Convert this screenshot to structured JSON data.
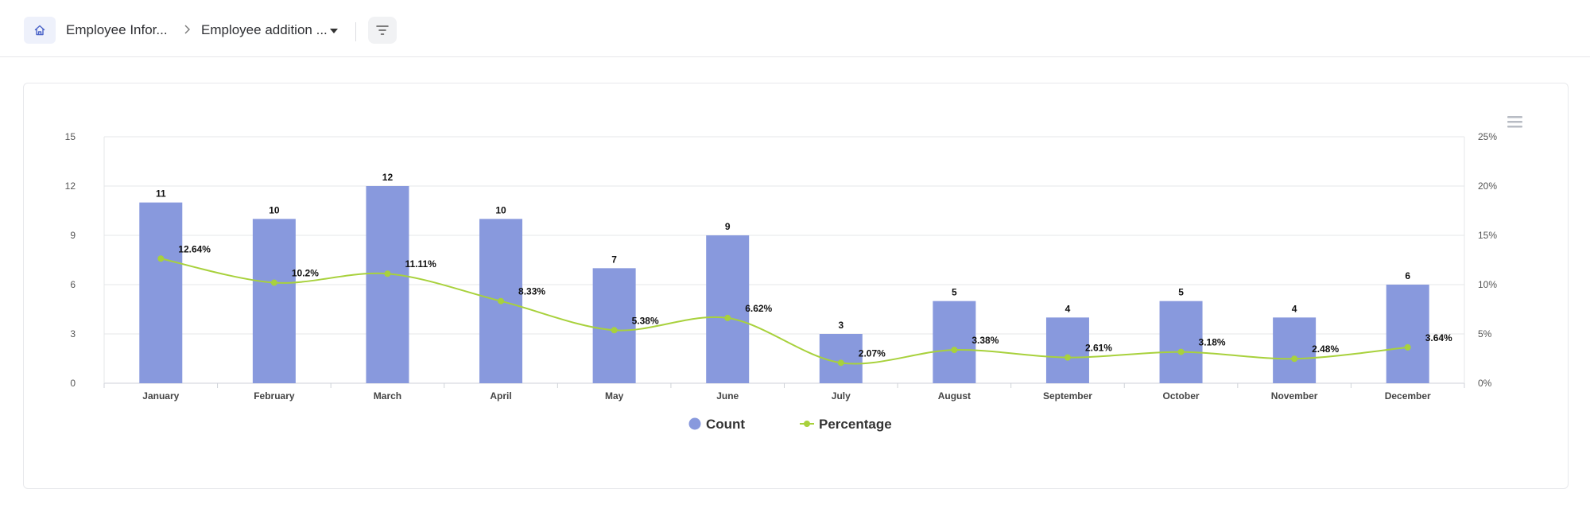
{
  "breadcrumb": {
    "home_icon": "home-icon",
    "item1": "Employee Infor...",
    "separator_icon": "chevron-right-icon",
    "item2": "Employee addition ...",
    "dropdown_icon": "caret-down-icon",
    "filter_icon": "filter-icon"
  },
  "chart_menu_icon": "hamburger-menu-icon",
  "colors": {
    "bar": "#8899dd",
    "line": "#a8d13c",
    "accent": "#4a63c8"
  },
  "chart_data": {
    "type": "bar",
    "categories": [
      "January",
      "February",
      "March",
      "April",
      "May",
      "June",
      "July",
      "August",
      "September",
      "October",
      "November",
      "December"
    ],
    "series": [
      {
        "name": "Count",
        "type": "bar",
        "axis": "left",
        "values": [
          11,
          10,
          12,
          10,
          7,
          9,
          3,
          5,
          4,
          5,
          4,
          6
        ],
        "labels": [
          "11",
          "10",
          "12",
          "10",
          "7",
          "9",
          "3",
          "5",
          "4",
          "5",
          "4",
          "6"
        ]
      },
      {
        "name": "Percentage",
        "type": "line",
        "axis": "right",
        "values": [
          12.64,
          10.2,
          11.11,
          8.33,
          5.38,
          6.62,
          2.07,
          3.38,
          2.61,
          3.18,
          2.48,
          3.64
        ],
        "labels": [
          "12.64%",
          "10.2%",
          "11.11%",
          "8.33%",
          "5.38%",
          "6.62%",
          "2.07%",
          "3.38%",
          "2.61%",
          "3.18%",
          "2.48%",
          "3.64%"
        ]
      }
    ],
    "y_left": {
      "range": [
        0,
        15
      ],
      "ticks": [
        "0",
        "3",
        "6",
        "9",
        "12",
        "15"
      ]
    },
    "y_right": {
      "range": [
        0,
        25
      ],
      "ticks": [
        "0%",
        "5%",
        "10%",
        "15%",
        "20%",
        "25%"
      ]
    },
    "grid": true,
    "legend_position": "bottom-center"
  }
}
